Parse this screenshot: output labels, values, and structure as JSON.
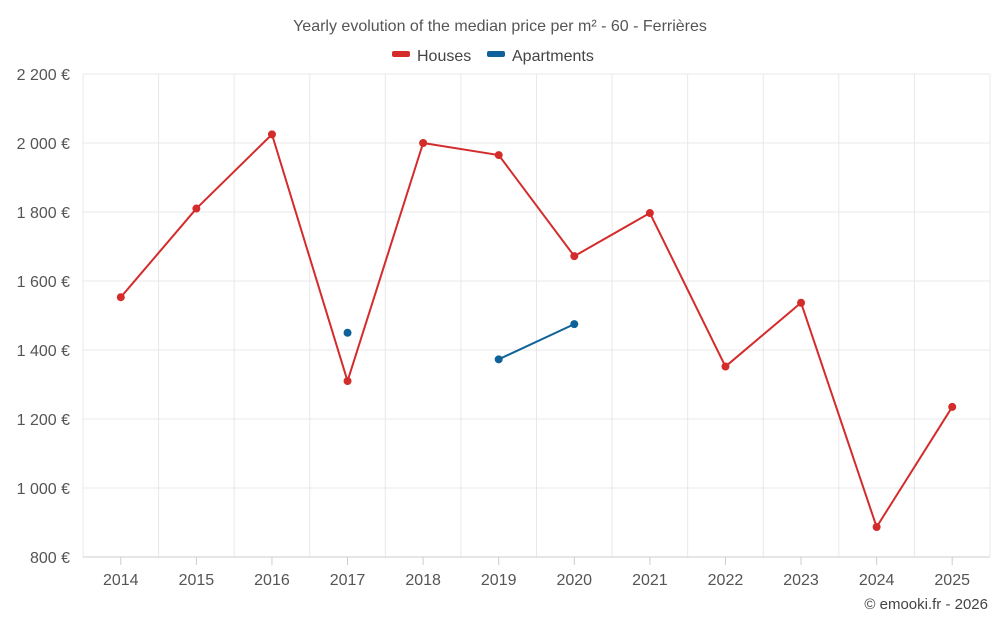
{
  "chart_data": {
    "type": "line",
    "title": "Yearly evolution of the median price per m² - 60 - Ferrières",
    "categories": [
      "2014",
      "2015",
      "2016",
      "2017",
      "2018",
      "2019",
      "2020",
      "2021",
      "2022",
      "2023",
      "2024",
      "2025"
    ],
    "ylim": [
      800,
      2200
    ],
    "yticks": [
      800,
      1000,
      1200,
      1400,
      1600,
      1800,
      2000,
      2200
    ],
    "ytick_labels": [
      "800 €",
      "1 000 €",
      "1 200 €",
      "1 400 €",
      "1 600 €",
      "1 800 €",
      "2 000 €",
      "2 200 €"
    ],
    "legend_position": "top-center",
    "series": [
      {
        "name": "Houses",
        "color": "#d42b2b",
        "values": [
          1553,
          1810,
          2025,
          1310,
          2000,
          1965,
          1672,
          1797,
          1352,
          1537,
          887,
          1235
        ]
      },
      {
        "name": "Apartments",
        "color": "#0f6299",
        "values": [
          null,
          null,
          null,
          1450,
          null,
          1373,
          1475,
          null,
          null,
          null,
          null,
          null
        ]
      }
    ]
  },
  "credit": "© emooki.fr - 2026"
}
